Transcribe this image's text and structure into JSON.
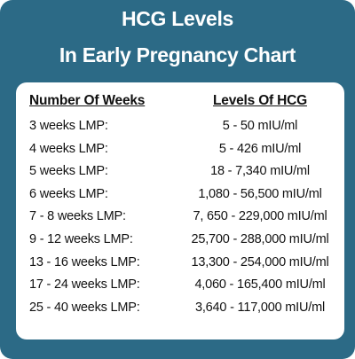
{
  "header": {
    "title": [
      "HCG Levels",
      "In Early Pregnancy Chart"
    ]
  },
  "table": {
    "columns": [
      "Number Of Weeks",
      "Levels Of HCG"
    ],
    "rows": [
      [
        "3 weeks LMP:",
        "5 - 50 mIU/ml"
      ],
      [
        "4 weeks LMP:",
        "5 - 426 mIU/ml"
      ],
      [
        "5 weeks LMP:",
        "18 - 7,340 mIU/ml"
      ],
      [
        "6 weeks LMP:",
        "1,080 - 56,500 mIU/ml"
      ],
      [
        "7 - 8 weeks LMP:",
        "7, 650 - 229,000 mIU/ml"
      ],
      [
        "9 - 12 weeks LMP:",
        "25,700 - 288,000 mIU/ml"
      ],
      [
        "13 - 16 weeks LMP:",
        "13,300 - 254,000 mIU/ml"
      ],
      [
        "17 - 24 weeks LMP:",
        "4,060 - 165,400 mIU/ml"
      ],
      [
        "25 - 40 weeks LMP:",
        "3,640 - 117,000 mIU/ml"
      ]
    ]
  }
}
